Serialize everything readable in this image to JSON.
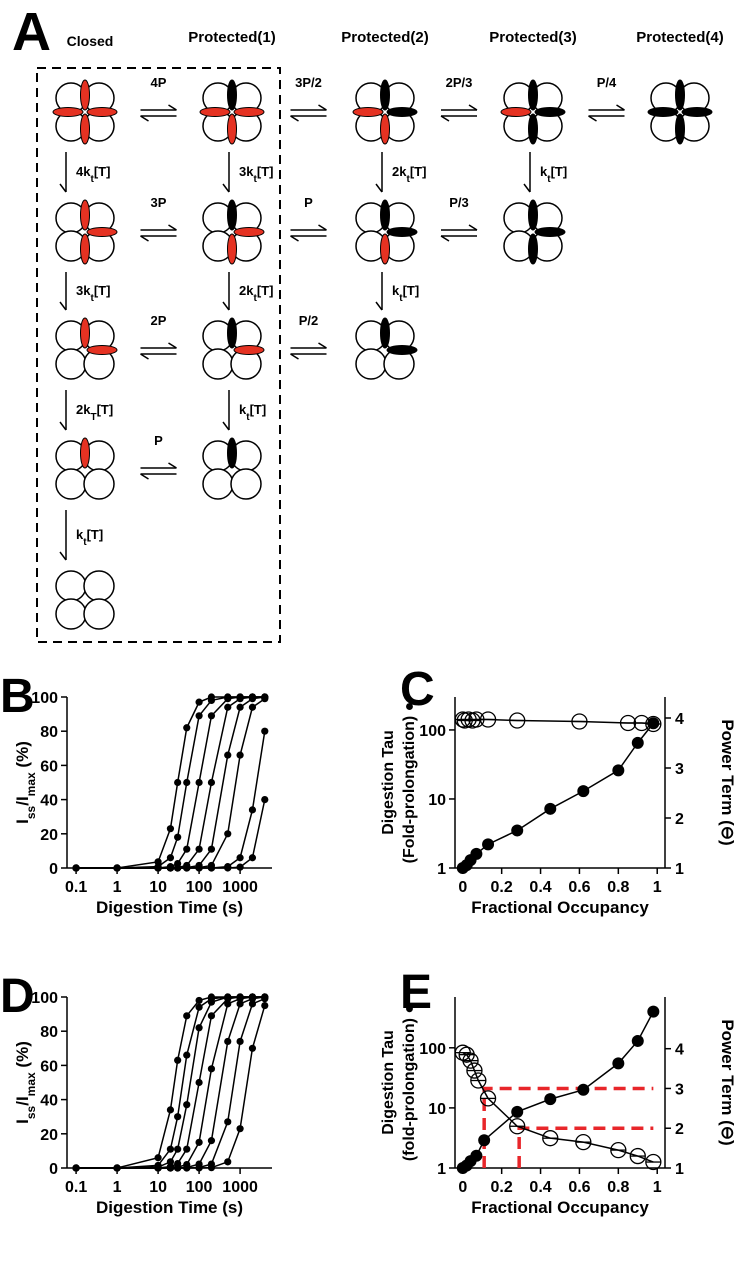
{
  "panel_a": {
    "label": "A",
    "states": [
      "Closed",
      "Protected(1)",
      "Protected(2)",
      "Protected(3)",
      "Protected(4)"
    ],
    "equilibria": [
      [
        "4P",
        "3P/2",
        "2P/3",
        "P/4"
      ],
      [
        "3P",
        "P",
        "P/3"
      ],
      [
        "2P",
        "P/2"
      ],
      [
        "P"
      ]
    ],
    "digestion": [
      [
        {
          "pre": "4k",
          "sub": "t",
          "post": "[T]"
        },
        {
          "pre": "3k",
          "sub": "t",
          "post": "[T]"
        },
        {
          "pre": "2k",
          "sub": "T",
          "post": "[T]"
        },
        {
          "pre": "k",
          "sub": "t",
          "post": "[T]"
        }
      ],
      [
        {
          "pre": "3k",
          "sub": "t",
          "post": "[T]"
        },
        {
          "pre": "2k",
          "sub": "t",
          "post": "[T]"
        },
        {
          "pre": "k",
          "sub": "t",
          "post": "[T]"
        }
      ],
      [
        {
          "pre": "2k",
          "sub": "t",
          "post": "[T]"
        },
        {
          "pre": "k",
          "sub": "t",
          "post": "[T]"
        }
      ],
      [
        {
          "pre": "k",
          "sub": "t",
          "post": "[T]"
        }
      ]
    ]
  },
  "chart_data": [
    {
      "type": "line",
      "panel": "B",
      "xlabel": "Digestion Time (s)",
      "ylabel": [
        {
          "text": "I"
        },
        {
          "text": "ss",
          "sub": true
        },
        {
          "text": "/I"
        },
        {
          "text": "max",
          "sub": true
        },
        {
          "text": " (%)"
        }
      ],
      "xscale": "log",
      "xlim": [
        0.06,
        6000
      ],
      "xticks": [
        0.1,
        1,
        10,
        100,
        1000
      ],
      "ylim": [
        0,
        100
      ],
      "yticks": [
        0,
        20,
        40,
        60,
        80,
        100
      ],
      "color": "#000000",
      "x": [
        0.1,
        1,
        10,
        20,
        30,
        50,
        100,
        200,
        500,
        1000,
        2000,
        4000
      ],
      "series": [
        {
          "values": [
            0,
            0,
            3.6,
            23,
            50,
            82,
            97,
            100,
            100,
            100,
            100,
            100
          ]
        },
        {
          "values": [
            0,
            0,
            0.8,
            6,
            18,
            50,
            89,
            98,
            100,
            100,
            100,
            100
          ]
        },
        {
          "values": [
            0,
            0,
            0,
            0.8,
            2.6,
            11,
            50,
            89,
            99,
            100,
            100,
            100
          ]
        },
        {
          "values": [
            0,
            0,
            0,
            0,
            0.3,
            1.5,
            11,
            50,
            94,
            99,
            100,
            100
          ]
        },
        {
          "values": [
            0,
            0,
            0,
            0,
            0,
            0.2,
            1.5,
            11,
            66,
            94,
            99,
            100
          ]
        },
        {
          "values": [
            0,
            0,
            0,
            0,
            0,
            0,
            0.2,
            1.5,
            20,
            66,
            94,
            99
          ]
        },
        {
          "values": [
            0,
            0,
            0,
            0,
            0,
            0,
            0,
            0,
            0.8,
            6,
            34,
            80
          ]
        },
        {
          "values": [
            0,
            0,
            0,
            0,
            0,
            0,
            0,
            0,
            0,
            0.5,
            6,
            40
          ]
        }
      ]
    },
    {
      "type": "line",
      "panel": "C",
      "xlabel": "Fractional Occupancy",
      "ylabel": [
        "Digestion Tau",
        "(Fold-prolongation) ●"
      ],
      "y2label": "Power Term (⊖)",
      "xlim": [
        -0.04,
        1.04
      ],
      "xticks": [
        0,
        0.2,
        0.4,
        0.6,
        0.8,
        1
      ],
      "yscale": "log",
      "ylim": [
        1,
        300
      ],
      "yticks": [
        1,
        10,
        100
      ],
      "y2lim": [
        1,
        4.42
      ],
      "y2ticks": [
        1,
        2,
        3,
        4
      ],
      "color": "#000000",
      "series": [
        {
          "marker": "filled",
          "x": [
            0,
            0.02,
            0.04,
            0.07,
            0.13,
            0.28,
            0.45,
            0.62,
            0.8,
            0.9,
            0.98
          ],
          "values": [
            1,
            1.1,
            1.3,
            1.6,
            2.2,
            3.5,
            7.2,
            13,
            26,
            65,
            125
          ]
        },
        {
          "marker": "open",
          "axis": "y2",
          "x": [
            0,
            0.01,
            0.03,
            0.05,
            0.07,
            0.13,
            0.28,
            0.6,
            0.85,
            0.92,
            0.98
          ],
          "values": [
            3.97,
            3.95,
            3.97,
            3.95,
            3.97,
            3.97,
            3.95,
            3.93,
            3.9,
            3.9,
            3.88
          ]
        }
      ]
    },
    {
      "type": "line",
      "panel": "D",
      "xlabel": "Digestion Time (s)",
      "ylabel": [
        {
          "text": "I"
        },
        {
          "text": "ss",
          "sub": true
        },
        {
          "text": "/I"
        },
        {
          "text": "max",
          "sub": true
        },
        {
          "text": " (%)"
        }
      ],
      "xscale": "log",
      "xlim": [
        0.06,
        6000
      ],
      "xticks": [
        0.1,
        1,
        10,
        100,
        1000
      ],
      "ylim": [
        0,
        100
      ],
      "yticks": [
        0,
        20,
        40,
        60,
        80,
        100
      ],
      "color": "#000000",
      "x": [
        0.1,
        1,
        10,
        20,
        30,
        50,
        100,
        200,
        500,
        1000,
        2000,
        4000
      ],
      "series": [
        {
          "values": [
            0,
            0,
            6,
            34,
            63,
            89,
            98,
            100,
            100,
            100,
            100,
            100
          ]
        },
        {
          "values": [
            0,
            0,
            1.5,
            11,
            30,
            66,
            94,
            99,
            100,
            100,
            100,
            100
          ]
        },
        {
          "values": [
            0,
            0,
            0.5,
            3.6,
            11,
            37,
            82,
            97,
            100,
            100,
            100,
            100
          ]
        },
        {
          "values": [
            0,
            0,
            0,
            0.8,
            2.6,
            11,
            50,
            89,
            99,
            100,
            100,
            100
          ]
        },
        {
          "values": [
            0,
            0,
            0,
            0,
            0.5,
            2,
            15,
            58,
            96,
            99,
            100,
            100
          ]
        },
        {
          "values": [
            0,
            0,
            0,
            0,
            0,
            0.3,
            2.3,
            16,
            74,
            96,
            99,
            100
          ]
        },
        {
          "values": [
            0,
            0,
            0,
            0,
            0,
            0,
            0.3,
            2.3,
            27,
            74,
            96,
            99
          ]
        },
        {
          "values": [
            0,
            0,
            0,
            0,
            0,
            0,
            0,
            0.2,
            3.6,
            23,
            70,
            95
          ]
        }
      ]
    },
    {
      "type": "line",
      "panel": "E",
      "xlabel": "Fractional Occupancy",
      "ylabel": [
        "Digestion Tau",
        "(fold-prolongation) ●"
      ],
      "y2label": "Power Term (⊖)",
      "xlim": [
        -0.04,
        1.04
      ],
      "xticks": [
        0,
        0.2,
        0.4,
        0.6,
        0.8,
        1
      ],
      "yscale": "log",
      "ylim": [
        1,
        700
      ],
      "yticks": [
        1,
        10,
        100
      ],
      "y2lim": [
        1,
        5.3
      ],
      "y2ticks": [
        1,
        2,
        3,
        4
      ],
      "color": "#000000",
      "series": [
        {
          "marker": "filled",
          "x": [
            0,
            0.02,
            0.04,
            0.07,
            0.11,
            0.28,
            0.45,
            0.62,
            0.8,
            0.9,
            0.98
          ],
          "values": [
            1,
            1.1,
            1.3,
            1.6,
            2.9,
            8.6,
            14,
            20,
            55,
            130,
            400
          ]
        },
        {
          "marker": "open",
          "axis": "y2",
          "x": [
            0,
            0.02,
            0.04,
            0.06,
            0.08,
            0.13,
            0.28,
            0.45,
            0.62,
            0.8,
            0.9,
            0.98
          ],
          "values": [
            3.9,
            3.85,
            3.7,
            3.45,
            3.2,
            2.75,
            2.05,
            1.75,
            1.65,
            1.45,
            1.3,
            1.15
          ]
        }
      ],
      "guides": [
        {
          "x": 0.11,
          "level": 3,
          "end": 0.98
        },
        {
          "x": 0.29,
          "level": 2,
          "end": 0.98
        }
      ],
      "guide_color": "#e8262a"
    }
  ]
}
